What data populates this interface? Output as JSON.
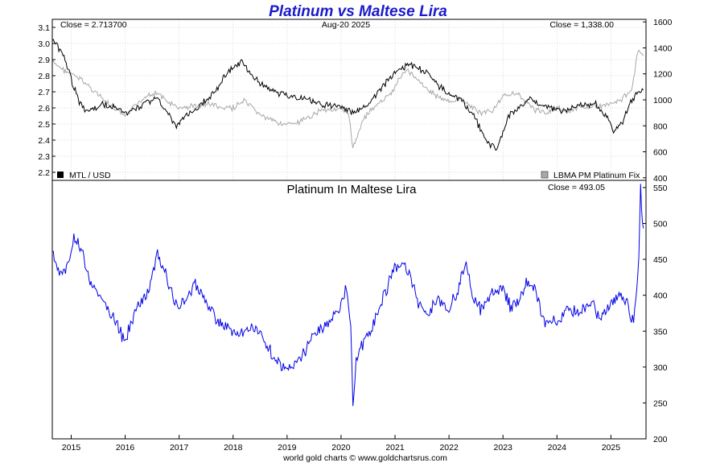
{
  "page": {
    "title": "Platinum vs Maltese Lira",
    "footer": "world gold charts © www.goldchartsrus.com"
  },
  "top_panel": {
    "close_left": "Close = 2.713700",
    "date": "Aug-20  2025",
    "close_right": "Close = 1,338.00",
    "legend_left": "MTL / USD",
    "legend_right": "LBMA PM Platinum Fix"
  },
  "bottom_panel": {
    "subtitle": "Platinum In Maltese Lira",
    "close": "Close = 493.05"
  },
  "colors": {
    "title": "#1a1acc",
    "mtl": "#000000",
    "platinum": "#a8a8a8",
    "ratio": "#0000e6"
  },
  "chart_data": [
    {
      "type": "line",
      "title": "Platinum vs Maltese Lira",
      "x_ticks": [
        "2015",
        "2016",
        "2017",
        "2018",
        "2019",
        "2020",
        "2021",
        "2022",
        "2023",
        "2024",
        "2025"
      ],
      "left_axis": {
        "ylim": [
          2.15,
          3.15
        ],
        "ticks": [
          2.2,
          2.3,
          2.4,
          2.5,
          2.6,
          2.7,
          2.8,
          2.9,
          3.0,
          3.1
        ]
      },
      "right_axis": {
        "ylim": [
          380,
          1620
        ],
        "ticks": [
          400,
          600,
          800,
          1000,
          1200,
          1400,
          1600
        ],
        "tick_labels": [
          "400",
          "600",
          "800",
          "1000",
          "1200",
          "1400",
          "1600"
        ]
      },
      "grid": true,
      "series": [
        {
          "name": "MTL / USD",
          "axis": "left",
          "x": [
            2014.65,
            2014.85,
            2015.0,
            2015.15,
            2015.25,
            2015.4,
            2015.6,
            2015.8,
            2016.0,
            2016.2,
            2016.4,
            2016.6,
            2016.8,
            2016.95,
            2017.1,
            2017.3,
            2017.5,
            2017.7,
            2017.85,
            2018.0,
            2018.15,
            2018.3,
            2018.5,
            2018.7,
            2018.85,
            2019.0,
            2019.2,
            2019.4,
            2019.6,
            2019.8,
            2020.0,
            2020.15,
            2020.25,
            2020.4,
            2020.6,
            2020.8,
            2020.95,
            2021.1,
            2021.25,
            2021.4,
            2021.6,
            2021.8,
            2022.0,
            2022.2,
            2022.4,
            2022.6,
            2022.75,
            2022.9,
            2023.1,
            2023.3,
            2023.5,
            2023.7,
            2023.9,
            2024.1,
            2024.3,
            2024.5,
            2024.7,
            2024.9,
            2025.05,
            2025.2,
            2025.35,
            2025.5,
            2025.6
          ],
          "values": [
            3.02,
            2.93,
            2.78,
            2.64,
            2.58,
            2.59,
            2.62,
            2.6,
            2.57,
            2.59,
            2.64,
            2.66,
            2.56,
            2.48,
            2.55,
            2.58,
            2.65,
            2.72,
            2.8,
            2.85,
            2.89,
            2.82,
            2.75,
            2.72,
            2.69,
            2.68,
            2.66,
            2.65,
            2.63,
            2.61,
            2.61,
            2.58,
            2.56,
            2.6,
            2.66,
            2.74,
            2.8,
            2.84,
            2.87,
            2.85,
            2.82,
            2.74,
            2.69,
            2.66,
            2.58,
            2.46,
            2.37,
            2.35,
            2.55,
            2.6,
            2.66,
            2.62,
            2.6,
            2.58,
            2.6,
            2.62,
            2.63,
            2.55,
            2.46,
            2.5,
            2.63,
            2.7,
            2.71
          ]
        },
        {
          "name": "LBMA PM Platinum Fix",
          "axis": "right",
          "x": [
            2014.65,
            2014.85,
            2015.0,
            2015.2,
            2015.4,
            2015.6,
            2015.8,
            2016.0,
            2016.2,
            2016.4,
            2016.6,
            2016.8,
            2017.0,
            2017.2,
            2017.4,
            2017.6,
            2017.8,
            2018.0,
            2018.2,
            2018.4,
            2018.6,
            2018.8,
            2019.0,
            2019.2,
            2019.4,
            2019.6,
            2019.8,
            2020.0,
            2020.15,
            2020.22,
            2020.4,
            2020.6,
            2020.8,
            2020.95,
            2021.1,
            2021.2,
            2021.4,
            2021.6,
            2021.8,
            2022.0,
            2022.2,
            2022.4,
            2022.6,
            2022.8,
            2023.0,
            2023.2,
            2023.4,
            2023.6,
            2023.8,
            2024.0,
            2024.2,
            2024.4,
            2024.6,
            2024.8,
            2025.0,
            2025.2,
            2025.4,
            2025.5,
            2025.6
          ],
          "values": [
            1290,
            1230,
            1200,
            1150,
            1080,
            1000,
            930,
            870,
            960,
            1040,
            1050,
            980,
            930,
            950,
            960,
            970,
            930,
            940,
            990,
            920,
            860,
            830,
            810,
            820,
            860,
            920,
            930,
            920,
            880,
            620,
            850,
            940,
            1000,
            1060,
            1180,
            1230,
            1170,
            1080,
            1020,
            980,
            1010,
            950,
            900,
            920,
            1020,
            1060,
            1000,
            920,
            900,
            950,
            900,
            940,
            950,
            950,
            980,
            1000,
            1100,
            1380,
            1338
          ]
        }
      ]
    },
    {
      "type": "line",
      "title": "Platinum In Maltese Lira",
      "x_ticks": [
        "2015",
        "2016",
        "2017",
        "2018",
        "2019",
        "2020",
        "2021",
        "2022",
        "2023",
        "2024",
        "2025"
      ],
      "ylim": [
        200,
        560
      ],
      "y_ticks": [
        200,
        250,
        300,
        350,
        400,
        450,
        500,
        550
      ],
      "grid": false,
      "series": [
        {
          "name": "Platinum In Maltese Lira",
          "x": [
            2014.65,
            2014.8,
            2014.95,
            2015.05,
            2015.2,
            2015.35,
            2015.5,
            2015.7,
            2015.9,
            2016.0,
            2016.1,
            2016.3,
            2016.45,
            2016.6,
            2016.75,
            2016.9,
            2017.0,
            2017.15,
            2017.3,
            2017.5,
            2017.7,
            2017.9,
            2018.1,
            2018.3,
            2018.5,
            2018.65,
            2018.8,
            2018.95,
            2019.1,
            2019.3,
            2019.5,
            2019.7,
            2019.9,
            2020.0,
            2020.1,
            2020.18,
            2020.22,
            2020.28,
            2020.4,
            2020.6,
            2020.8,
            2020.95,
            2021.05,
            2021.15,
            2021.3,
            2021.45,
            2021.6,
            2021.8,
            2022.0,
            2022.15,
            2022.3,
            2022.45,
            2022.6,
            2022.8,
            2023.0,
            2023.15,
            2023.3,
            2023.45,
            2023.6,
            2023.8,
            2024.0,
            2024.2,
            2024.4,
            2024.6,
            2024.8,
            2025.0,
            2025.15,
            2025.3,
            2025.42,
            2025.5,
            2025.55,
            2025.6
          ],
          "values": [
            455,
            430,
            445,
            480,
            460,
            420,
            400,
            380,
            350,
            330,
            365,
            390,
            410,
            455,
            430,
            395,
            385,
            395,
            415,
            390,
            365,
            355,
            345,
            355,
            350,
            330,
            310,
            295,
            300,
            320,
            345,
            355,
            375,
            385,
            410,
            350,
            250,
            310,
            330,
            360,
            400,
            430,
            440,
            450,
            425,
            385,
            370,
            395,
            380,
            405,
            445,
            395,
            380,
            400,
            410,
            380,
            395,
            420,
            405,
            360,
            365,
            380,
            375,
            390,
            370,
            385,
            400,
            390,
            360,
            420,
            545,
            493
          ]
        }
      ]
    }
  ]
}
